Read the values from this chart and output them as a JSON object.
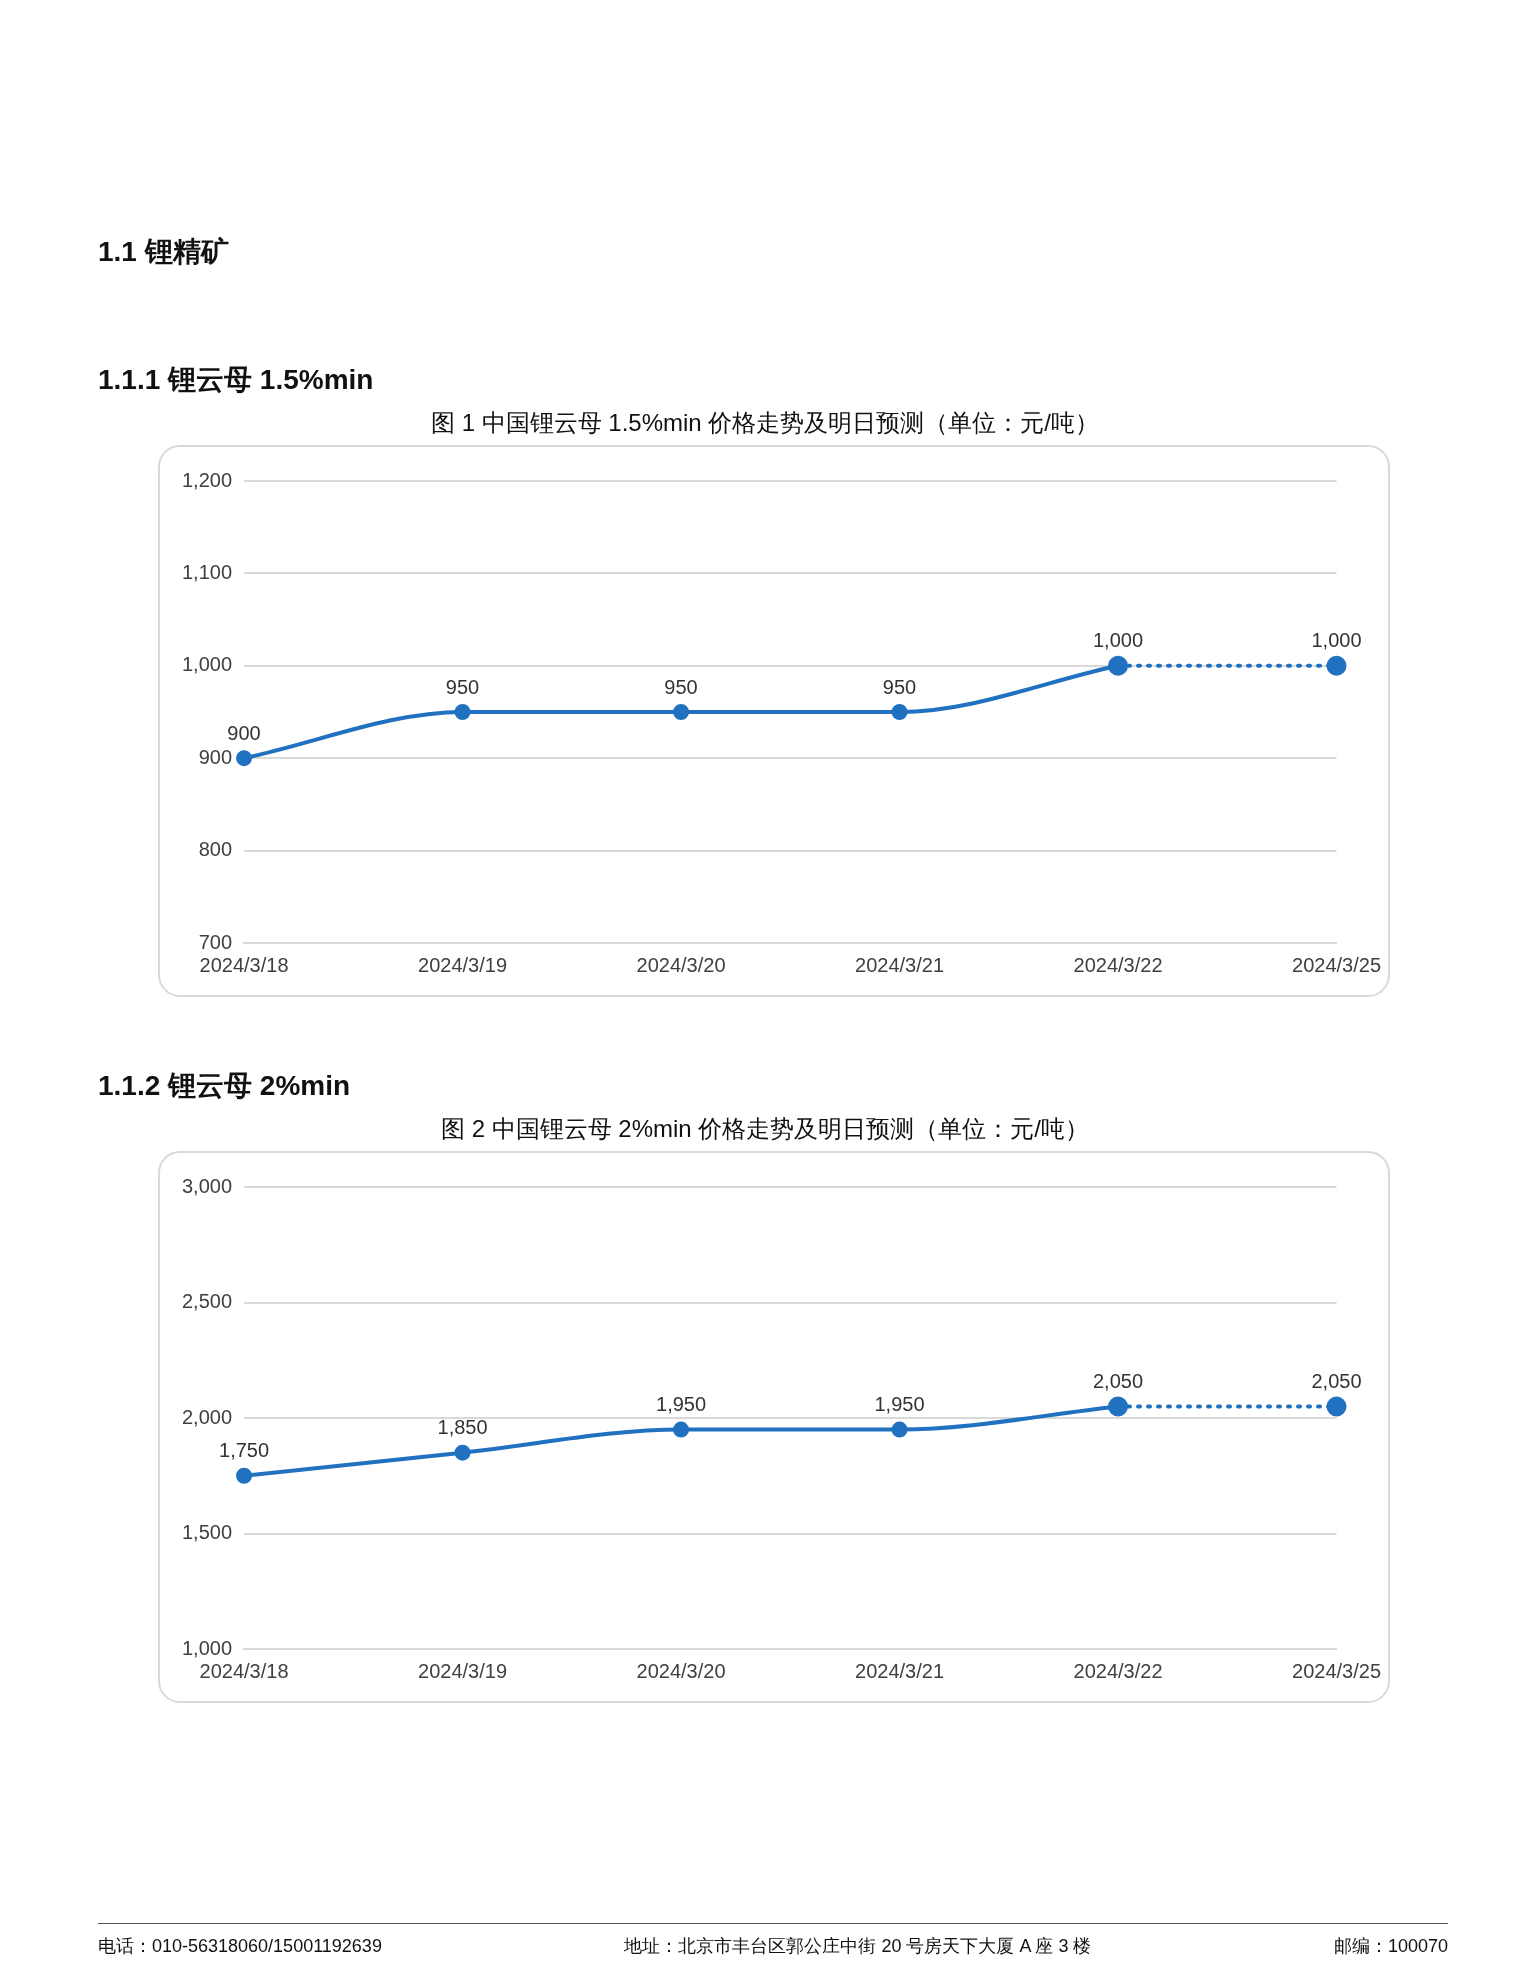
{
  "chart_data": [
    {
      "type": "line",
      "title": "图 1 中国锂云母 1.5%min 价格走势及明日预测（单位：元/吨）",
      "annotations": [
        "1.1 锂精矿",
        "1.1.1 锂云母 1.5%min"
      ],
      "categories": [
        "2024/3/18",
        "2024/3/19",
        "2024/3/20",
        "2024/3/21",
        "2024/3/22",
        "2024/3/25"
      ],
      "series": [
        {
          "color": "#2171c1",
          "values": [
            900,
            950,
            950,
            950,
            1000,
            null
          ],
          "value_labels": [
            "900",
            "950",
            "950",
            "950",
            "1,000",
            null
          ],
          "line_style": "solid"
        },
        {
          "color": "#2171c1",
          "values": [
            null,
            null,
            null,
            null,
            1000,
            1000
          ],
          "value_labels": [
            null,
            null,
            null,
            null,
            null,
            "1,000"
          ],
          "line_style": "dotted"
        }
      ],
      "ylim": [
        700,
        1200
      ],
      "yticks": [
        700,
        800,
        900,
        {
          "value": 1000,
          "label": "1,000"
        },
        {
          "value": 1100,
          "label": "1,100"
        },
        {
          "value": 1200,
          "label": "1,200"
        }
      ],
      "grid": "y",
      "legend": false,
      "marker": "circle"
    },
    {
      "type": "line",
      "title": "图 2 中国锂云母 2%min 价格走势及明日预测（单位：元/吨）",
      "annotations": [
        "1.1.2 锂云母 2%min",
        "电话：010-56318060/15001192639",
        "地址：北京市丰台区郭公庄中街 20 号房天下大厦 A 座 3 楼",
        "邮编：100070"
      ],
      "categories": [
        "2024/3/18",
        "2024/3/19",
        "2024/3/20",
        "2024/3/21",
        "2024/3/22",
        "2024/3/25"
      ],
      "series": [
        {
          "color": "#2171c1",
          "values": [
            1750,
            1850,
            1950,
            1950,
            2050,
            null
          ],
          "value_labels": [
            "1,750",
            "1,850",
            "1,950",
            "1,950",
            "2,050",
            null
          ],
          "line_style": "solid"
        },
        {
          "color": "#2171c1",
          "values": [
            null,
            null,
            null,
            null,
            2050,
            2050
          ],
          "value_labels": [
            null,
            null,
            null,
            null,
            null,
            "2,050"
          ],
          "line_style": "dotted"
        }
      ],
      "ylim": [
        1000,
        3000
      ],
      "yticks": [
        {
          "value": 1000,
          "label": "1,000"
        },
        {
          "value": 1500,
          "label": "1,500"
        },
        {
          "value": 2000,
          "label": "2,000"
        },
        {
          "value": 2500,
          "label": "2,500"
        },
        {
          "value": 3000,
          "label": "3,000"
        }
      ],
      "grid": "y",
      "legend": false,
      "marker": "circle"
    }
  ]
}
